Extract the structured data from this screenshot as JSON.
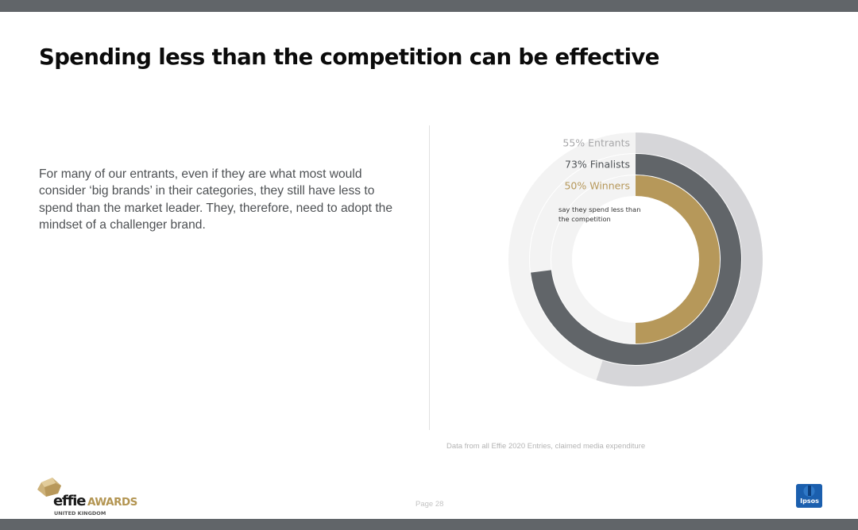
{
  "slide": {
    "title": "Spending less than the competition can be effective",
    "body": "For many of our entrants, even if they are what most would consider ‘big brands’ in their categories, they  still have less to spend than the market leader. They, therefore, need to adopt the mindset of a challenger brand.",
    "source": "Data from all Effie 2020 Entries, claimed media expenditure",
    "page_label": "Page 28"
  },
  "logos": {
    "effie_word": "effie",
    "effie_awards": "AWARDS",
    "effie_region": "UNITED KINGDOM",
    "ipsos": "Ipsos"
  },
  "colors": {
    "bars": "#616569",
    "entrants": "#d6d6d9",
    "finalists": "#616569",
    "winners": "#b6985a",
    "track": "#f3f3f3"
  },
  "chart_data": {
    "type": "radial-bar",
    "annotation": "say they spend less than the competition",
    "series": [
      {
        "name": "Entrants",
        "label": "55% Entrants",
        "value": 55,
        "color": "#d6d6d9",
        "label_color": "#a7a7a9"
      },
      {
        "name": "Finalists",
        "label": "73% Finalists",
        "value": 73,
        "color": "#616569",
        "label_color": "#4e5256"
      },
      {
        "name": "Winners",
        "label": "50% Winners",
        "value": 50,
        "color": "#b6985a",
        "label_color": "#b6985a"
      }
    ],
    "range": [
      0,
      100
    ]
  }
}
